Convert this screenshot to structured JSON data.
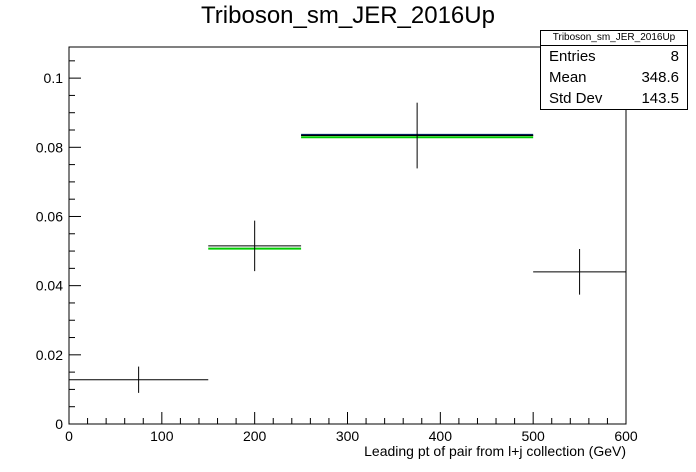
{
  "title": "Triboson_sm_JER_2016Up",
  "stats": {
    "name": "Triboson_sm_JER_2016Up",
    "entries_label": "Entries",
    "entries_value": "8",
    "mean_label": "Mean",
    "mean_value": "348.6",
    "std_label": "Std Dev",
    "std_value": "143.5"
  },
  "chart_data": {
    "type": "bar",
    "title": "Triboson_sm_JER_2016Up",
    "xlabel": "Leading pt of pair from l+j collection (GeV)",
    "ylabel": "",
    "xlim": [
      0,
      600
    ],
    "ylim": [
      0,
      0.109
    ],
    "x_ticks": [
      0,
      100,
      200,
      300,
      400,
      500,
      600
    ],
    "y_ticks": [
      0,
      0.02,
      0.04,
      0.06,
      0.08,
      0.1
    ],
    "x_tick_labels": [
      "0",
      "100",
      "200",
      "300",
      "400",
      "500",
      "600"
    ],
    "y_tick_labels": [
      "0",
      "0.02",
      "0.04",
      "0.06",
      "0.08",
      "0.1"
    ],
    "bins": [
      {
        "xlow": 0,
        "xhigh": 150,
        "value": 0.0128,
        "error": 0.0038,
        "center": 75
      },
      {
        "xlow": 150,
        "xhigh": 250,
        "value": 0.0515,
        "error": 0.0073,
        "center": 200
      },
      {
        "xlow": 250,
        "xhigh": 500,
        "value": 0.0834,
        "error": 0.0095,
        "center": 375
      },
      {
        "xlow": 500,
        "xhigh": 600,
        "value": 0.044,
        "error": 0.0066,
        "center": 550
      }
    ],
    "series": [
      {
        "name": "",
        "style": "black-error",
        "values": [
          0.0128,
          0.0515,
          0.0834,
          0.044
        ],
        "color": "#000000"
      },
      {
        "name": "",
        "style": "green-line",
        "values": [
          null,
          0.0507,
          0.0829,
          null
        ],
        "color": "#00cc00"
      },
      {
        "name": "",
        "style": "navy-line",
        "values": [
          null,
          null,
          0.0836,
          null
        ],
        "color": "#00205b"
      }
    ]
  }
}
